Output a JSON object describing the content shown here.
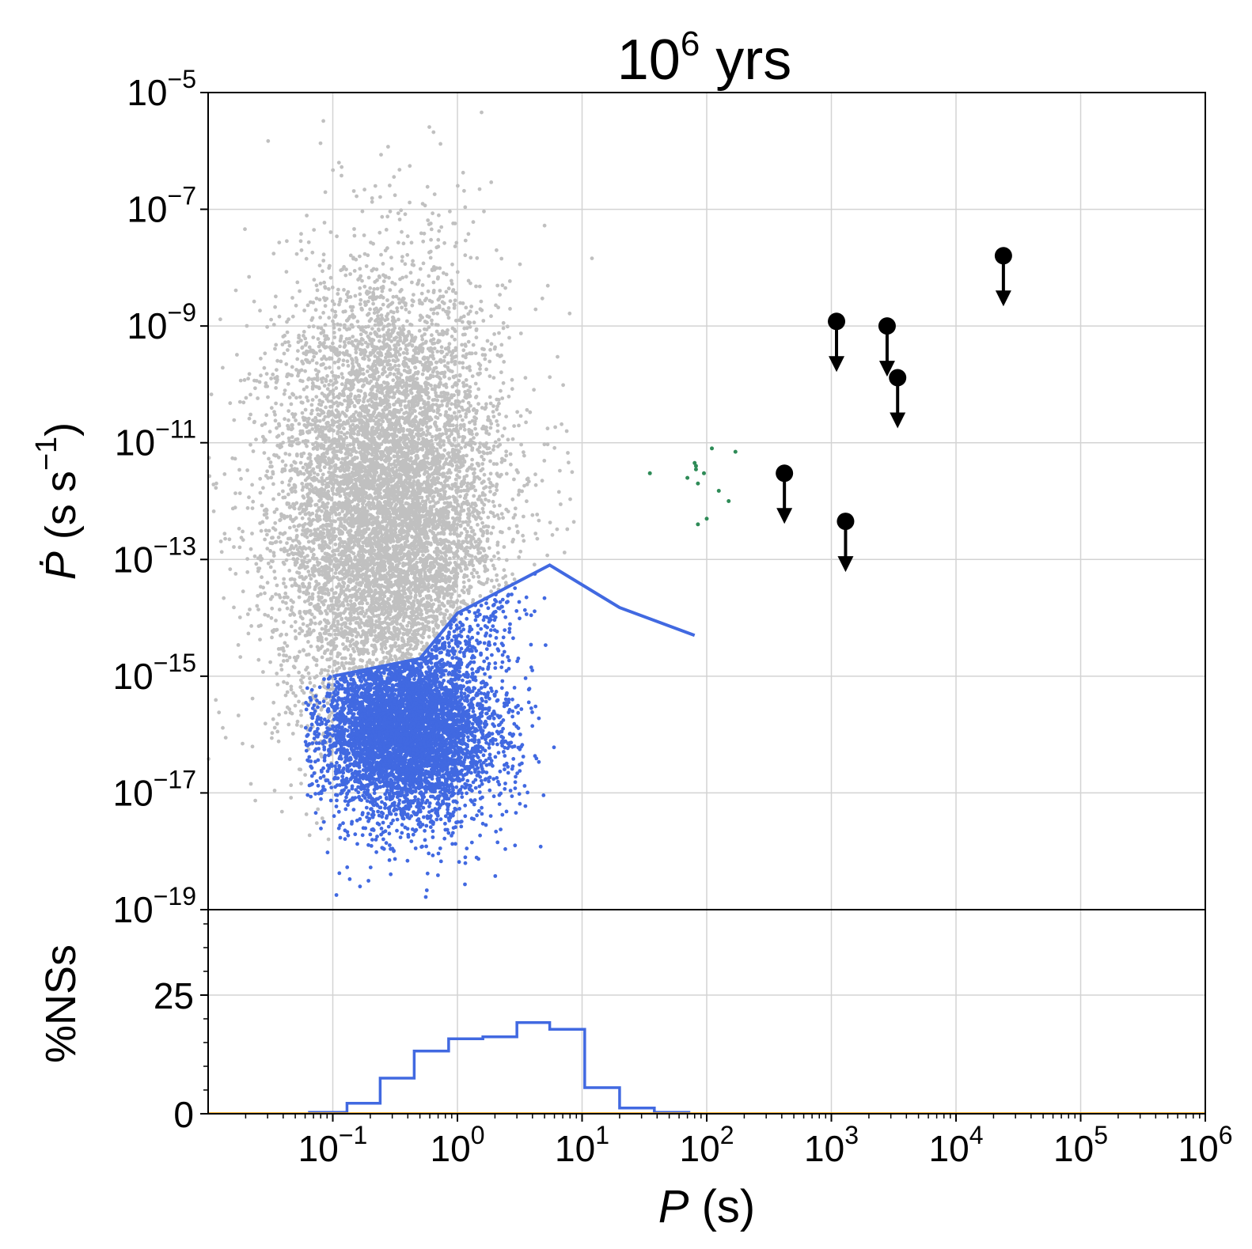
{
  "chart_data": [
    {
      "type": "scatter",
      "title": {
        "base": "10",
        "exp": "6",
        "suffix": " yrs"
      },
      "xscale": "log",
      "yscale": "log",
      "xlim": [
        0.01,
        1000000
      ],
      "ylim": [
        1e-19,
        1e-05
      ],
      "grid": true,
      "ylabel": {
        "italic": "Ṗ",
        "text": " (s s",
        "exp": "−1",
        "close": ")"
      },
      "y_ticks": [
        {
          "value": 1e-05,
          "base": "10",
          "exp": "−5"
        },
        {
          "value": 1e-07,
          "base": "10",
          "exp": "−7"
        },
        {
          "value": 1e-09,
          "base": "10",
          "exp": "−9"
        },
        {
          "value": 1e-11,
          "base": "10",
          "exp": "−11"
        },
        {
          "value": 1e-13,
          "base": "10",
          "exp": "−13"
        },
        {
          "value": 1e-15,
          "base": "10",
          "exp": "−15"
        },
        {
          "value": 1e-17,
          "base": "10",
          "exp": "−17"
        },
        {
          "value": 1e-19,
          "base": "10",
          "exp": "−19"
        }
      ],
      "series": [
        {
          "role": "population",
          "color": "#c0c0c0",
          "marker": "dot",
          "distribution": {
            "log_p_center": -0.55,
            "log_p_spread": 0.45,
            "log_pdot_center": -12.2,
            "log_pdot_spread": 2.0,
            "count": 9000
          }
        },
        {
          "role": "spun-down",
          "color": "#4169e1",
          "marker": "dot",
          "distribution": {
            "log_p_center": -0.4,
            "log_p_spread": 0.35,
            "log_pdot_center": -16.0,
            "log_pdot_spread": 0.7,
            "count": 5000
          },
          "line": [
            [
              0.1,
              1e-15
            ],
            [
              0.5,
              2e-15
            ],
            [
              1,
              1.2e-14
            ],
            [
              5.5,
              8e-14
            ],
            [
              20,
              1.5e-14
            ],
            [
              80,
              5e-15
            ]
          ]
        },
        {
          "role": "green-points",
          "color": "#2e8b57",
          "marker": "dot",
          "points": [
            [
              35,
              3e-12
            ],
            [
              70,
              2.5e-12
            ],
            [
              80,
              4.5e-12
            ],
            [
              82,
              4e-12
            ],
            [
              85,
              2e-12
            ],
            [
              95,
              3e-12
            ],
            [
              110,
              8e-12
            ],
            [
              150,
              1e-12
            ],
            [
              125,
              1.5e-12
            ],
            [
              170,
              7e-12
            ],
            [
              85,
              4e-13
            ],
            [
              100,
              5e-13
            ],
            [
              82,
              3.5e-12
            ]
          ]
        },
        {
          "role": "upper-limits",
          "color": "#000000",
          "marker": "circle-with-down-arrow",
          "points": [
            [
              420,
              3e-12
            ],
            [
              1100,
              1.2e-09
            ],
            [
              1300,
              4.5e-13
            ],
            [
              2800,
              1e-09
            ],
            [
              3400,
              1.3e-10
            ],
            [
              24000,
              1.6e-08
            ]
          ]
        }
      ]
    },
    {
      "type": "histogram",
      "xscale": "log",
      "xlim": [
        0.01,
        1000000
      ],
      "ylim": [
        0,
        43
      ],
      "ylabel": "%NSs",
      "xlabel": {
        "italic": "P",
        "text": " (s)"
      },
      "y_ticks": [
        {
          "value": 0,
          "label": "0"
        },
        {
          "value": 25,
          "label": "25"
        }
      ],
      "x_ticks": [
        {
          "value": 0.1,
          "base": "10",
          "exp": "−1"
        },
        {
          "value": 1,
          "base": "10",
          "exp": "0"
        },
        {
          "value": 10,
          "base": "10",
          "exp": "1"
        },
        {
          "value": 100,
          "base": "10",
          "exp": "2"
        },
        {
          "value": 1000,
          "base": "10",
          "exp": "3"
        },
        {
          "value": 10000,
          "base": "10",
          "exp": "4"
        },
        {
          "value": 100000,
          "base": "10",
          "exp": "5"
        },
        {
          "value": 1000000,
          "base": "10",
          "exp": "6"
        }
      ],
      "series": [
        {
          "color": "#4169e1",
          "bin_edges": [
            0.065,
            0.13,
            0.24,
            0.45,
            0.85,
            1.6,
            3.0,
            5.5,
            10.5,
            20,
            38,
            72
          ],
          "values": [
            0.3,
            2.2,
            7.5,
            13.2,
            15.8,
            16.2,
            19.2,
            17.8,
            5.5,
            1.2,
            0.3
          ]
        }
      ]
    }
  ]
}
